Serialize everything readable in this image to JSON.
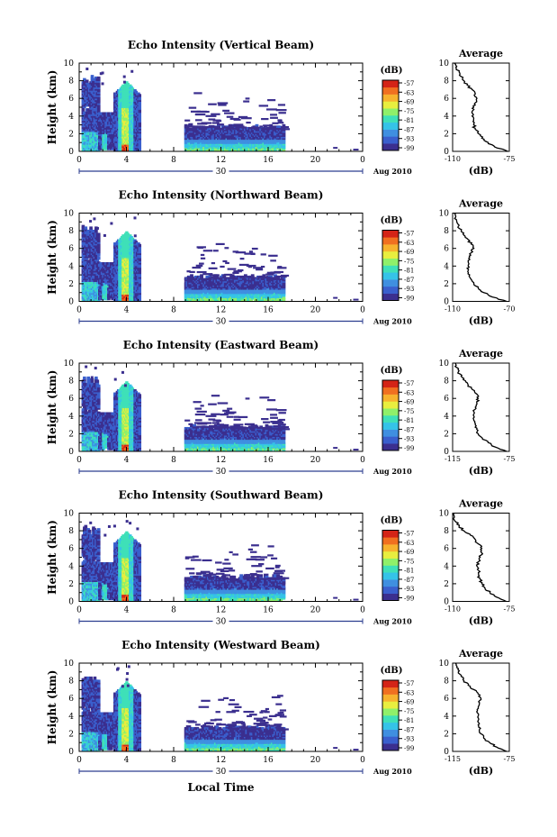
{
  "figure": {
    "xlabel_bottom": "Local Time",
    "date_label": "Aug 2010",
    "day_label": "30",
    "cbar_unit": "(dB)",
    "cbar_ticks": [
      "-57",
      "-63",
      "-69",
      "-75",
      "-81",
      "-87",
      "-93",
      "-99"
    ],
    "avg_title": "Average",
    "avg_xlabel": "(dB)",
    "ylabel": "Height (km)",
    "colorbar_colors": [
      "#3b2f8f",
      "#3a5fcd",
      "#3f8fe0",
      "#35c3e8",
      "#3fe0b8",
      "#8ff06a",
      "#e8ee3f",
      "#f7b22e",
      "#f07020",
      "#d42417"
    ]
  },
  "chart_data": [
    {
      "type": "heatmap",
      "title": "Echo Intensity (Vertical Beam)",
      "ylabel": "Height (km)",
      "xticks": [
        "0",
        "4",
        "8",
        "12",
        "16",
        "20",
        "0"
      ],
      "yticks": [
        "0",
        "2",
        "4",
        "6",
        "8",
        "10"
      ],
      "xlim": [
        0,
        24
      ],
      "ylim": [
        0,
        10
      ],
      "colorbar": {
        "label": "(dB)",
        "ticks": [
          "-57",
          "-63",
          "-69",
          "-75",
          "-81",
          "-87",
          "-93",
          "-99"
        ]
      },
      "profile": {
        "title": "Average",
        "xlabel": "(dB)",
        "xticks": [
          "-110",
          "-75"
        ],
        "xlim": [
          -110,
          -75
        ],
        "yticks": [
          "0",
          "2",
          "4",
          "6",
          "8",
          "10"
        ],
        "heights": [
          0,
          0.5,
          1,
          1.5,
          2,
          2.5,
          3,
          3.5,
          4,
          4.5,
          5,
          5.5,
          6,
          6.5,
          7,
          7.5,
          8,
          8.5,
          9,
          9.5,
          10
        ],
        "values": [
          -76,
          -84,
          -88,
          -92,
          -94,
          -96,
          -97,
          -97,
          -98,
          -98,
          -97,
          -96,
          -95,
          -96,
          -98,
          -101,
          -103,
          -105,
          -106,
          -108,
          -109
        ]
      }
    },
    {
      "type": "heatmap",
      "title": "Echo Intensity (Northward Beam)",
      "ylabel": "Height (km)",
      "xticks": [
        "0",
        "4",
        "8",
        "12",
        "16",
        "20",
        "0"
      ],
      "yticks": [
        "0",
        "2",
        "4",
        "6",
        "8",
        "10"
      ],
      "xlim": [
        0,
        24
      ],
      "ylim": [
        0,
        10
      ],
      "colorbar": {
        "label": "(dB)",
        "ticks": [
          "-57",
          "-63",
          "-69",
          "-75",
          "-81",
          "-87",
          "-93",
          "-99"
        ]
      },
      "profile": {
        "title": "Average",
        "xlabel": "(dB)",
        "xticks": [
          "-110",
          "-70"
        ],
        "xlim": [
          -110,
          -70
        ],
        "yticks": [
          "0",
          "2",
          "4",
          "6",
          "8",
          "10"
        ],
        "heights": [
          0,
          0.5,
          1,
          1.5,
          2,
          2.5,
          3,
          3.5,
          4,
          4.5,
          5,
          5.5,
          6,
          6.5,
          7,
          7.5,
          8,
          8.5,
          9,
          9.5,
          10
        ],
        "values": [
          -72,
          -82,
          -88,
          -92,
          -95,
          -97,
          -98,
          -99,
          -99,
          -99,
          -98,
          -97,
          -95,
          -97,
          -99,
          -102,
          -104,
          -106,
          -107,
          -108,
          -109
        ]
      }
    },
    {
      "type": "heatmap",
      "title": "Echo Intensity (Eastward Beam)",
      "ylabel": "Height (km)",
      "xticks": [
        "0",
        "4",
        "8",
        "12",
        "16",
        "20",
        "0"
      ],
      "yticks": [
        "0",
        "2",
        "4",
        "6",
        "8",
        "10"
      ],
      "xlim": [
        0,
        24
      ],
      "ylim": [
        0,
        10
      ],
      "colorbar": {
        "label": "(dB)",
        "ticks": [
          "-57",
          "-63",
          "-69",
          "-75",
          "-81",
          "-87",
          "-93",
          "-99"
        ]
      },
      "profile": {
        "title": "Average",
        "xlabel": "(dB)",
        "xticks": [
          "-115",
          "-75"
        ],
        "xlim": [
          -115,
          -75
        ],
        "yticks": [
          "0",
          "2",
          "4",
          "6",
          "8",
          "10"
        ],
        "heights": [
          0,
          0.5,
          1,
          1.5,
          2,
          2.5,
          3,
          3.5,
          4,
          4.5,
          5,
          5.5,
          6,
          6.5,
          7,
          7.5,
          8,
          8.5,
          9,
          9.5,
          10
        ],
        "values": [
          -77,
          -85,
          -90,
          -94,
          -97,
          -98,
          -99,
          -100,
          -100,
          -100,
          -99,
          -98,
          -97,
          -98,
          -101,
          -104,
          -106,
          -109,
          -111,
          -112,
          -113
        ]
      }
    },
    {
      "type": "heatmap",
      "title": "Echo Intensity (Southward Beam)",
      "ylabel": "Height (km)",
      "xticks": [
        "0",
        "4",
        "8",
        "12",
        "16",
        "20",
        "0"
      ],
      "yticks": [
        "0",
        "2",
        "4",
        "6",
        "8",
        "10"
      ],
      "xlim": [
        0,
        24
      ],
      "ylim": [
        0,
        10
      ],
      "colorbar": {
        "label": "(dB)",
        "ticks": [
          "-57",
          "-63",
          "-69",
          "-75",
          "-81",
          "-87",
          "-93",
          "-99"
        ]
      },
      "profile": {
        "title": "Average",
        "xlabel": "(dB)",
        "xticks": [
          "-110",
          "-75"
        ],
        "xlim": [
          -110,
          -75
        ],
        "yticks": [
          "0",
          "2",
          "4",
          "6",
          "8",
          "10"
        ],
        "heights": [
          0,
          0.5,
          1,
          1.5,
          2,
          2.5,
          3,
          3.5,
          4,
          4.5,
          5,
          5.5,
          6,
          6.5,
          7,
          7.5,
          8,
          8.5,
          9,
          9.5,
          10
        ],
        "values": [
          -77,
          -83,
          -87,
          -90,
          -92,
          -93,
          -94,
          -94,
          -95,
          -94,
          -93,
          -92,
          -92,
          -94,
          -96,
          -99,
          -103,
          -106,
          -108,
          -109,
          -109
        ]
      }
    },
    {
      "type": "heatmap",
      "title": "Echo Intensity (Westward Beam)",
      "ylabel": "Height (km)",
      "xticks": [
        "0",
        "4",
        "8",
        "12",
        "16",
        "20",
        "0"
      ],
      "yticks": [
        "0",
        "2",
        "4",
        "6",
        "8",
        "10"
      ],
      "xlim": [
        0,
        24
      ],
      "ylim": [
        0,
        10
      ],
      "colorbar": {
        "label": "(dB)",
        "ticks": [
          "-57",
          "-63",
          "-69",
          "-75",
          "-81",
          "-87",
          "-93",
          "-99"
        ]
      },
      "profile": {
        "title": "Average",
        "xlabel": "(dB)",
        "xticks": [
          "-115",
          "-75"
        ],
        "xlim": [
          -115,
          -75
        ],
        "yticks": [
          "0",
          "2",
          "4",
          "6",
          "8",
          "10"
        ],
        "heights": [
          0,
          0.5,
          1,
          1.5,
          2,
          2.5,
          3,
          3.5,
          4,
          4.5,
          5,
          5.5,
          6,
          6.5,
          7,
          7.5,
          8,
          8.5,
          9,
          9.5,
          10
        ],
        "values": [
          -77,
          -84,
          -89,
          -93,
          -95,
          -96,
          -97,
          -97,
          -97,
          -98,
          -97,
          -96,
          -95,
          -97,
          -100,
          -104,
          -107,
          -109,
          -111,
          -112,
          -113
        ]
      }
    }
  ]
}
